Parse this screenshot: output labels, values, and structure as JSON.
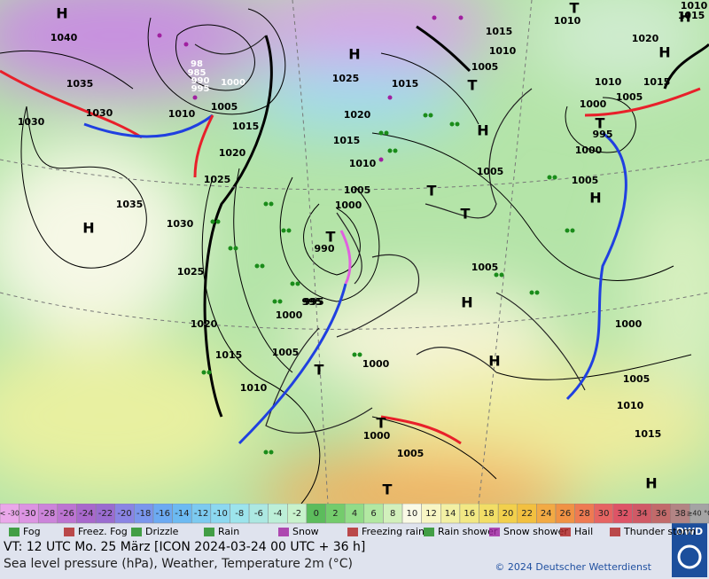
{
  "map": {
    "pressure_labels": [
      "1040",
      "1035",
      "1030",
      "1030",
      "1010",
      "1005",
      "1015",
      "1020",
      "1025",
      "1035",
      "1030",
      "1025",
      "1020",
      "1015",
      "1010",
      "1005",
      "1000",
      "995",
      "990",
      "1000",
      "1005",
      "1010",
      "1015",
      "1020",
      "1025",
      "1015",
      "1010",
      "1005",
      "1015",
      "1010",
      "1005",
      "1000",
      "995",
      "1000",
      "1005",
      "1010",
      "1020",
      "1015",
      "1005",
      "995",
      "1000",
      "1005",
      "1000",
      "1005",
      "1010",
      "1015",
      "1000",
      "1005",
      "1015",
      "1010",
      "1000",
      "1005",
      "98",
      "985",
      "990",
      "995",
      "1000"
    ],
    "centers": [
      "H",
      "H",
      "H",
      "H",
      "H",
      "H",
      "H",
      "H",
      "H",
      "H",
      "T",
      "T",
      "T",
      "T",
      "T",
      "T",
      "T",
      "T",
      "T"
    ]
  },
  "scale": {
    "cells": [
      {
        "label": "< -30",
        "color": "#eaa8ea"
      },
      {
        "label": "-30",
        "color": "#dc94e2"
      },
      {
        "label": "-28",
        "color": "#cc84da"
      },
      {
        "label": "-26",
        "color": "#bc74d2"
      },
      {
        "label": "-24",
        "color": "#a868cc"
      },
      {
        "label": "-22",
        "color": "#9a6cd0"
      },
      {
        "label": "-20",
        "color": "#8a84e4"
      },
      {
        "label": "-18",
        "color": "#7a96ec"
      },
      {
        "label": "-16",
        "color": "#6caaf2"
      },
      {
        "label": "-14",
        "color": "#6cbaf2"
      },
      {
        "label": "-12",
        "color": "#7ccaf0"
      },
      {
        "label": "-10",
        "color": "#8cd8f0"
      },
      {
        "label": "-8",
        "color": "#9ce4ec"
      },
      {
        "label": "-6",
        "color": "#ace8e2"
      },
      {
        "label": "-4",
        "color": "#bcefd8"
      },
      {
        "label": "-2",
        "color": "#c8f2cc"
      },
      {
        "label": "0",
        "color": "#5cbc5c"
      },
      {
        "label": "2",
        "color": "#74cc6c"
      },
      {
        "label": "4",
        "color": "#92dc88"
      },
      {
        "label": "6",
        "color": "#b2e8a2"
      },
      {
        "label": "8",
        "color": "#d2f0bc"
      },
      {
        "label": "10",
        "color": "#fafae6"
      },
      {
        "label": "12",
        "color": "#f8f6c4"
      },
      {
        "label": "14",
        "color": "#f2f0a4"
      },
      {
        "label": "16",
        "color": "#f2e884"
      },
      {
        "label": "18",
        "color": "#f2de66"
      },
      {
        "label": "20",
        "color": "#f2d04c"
      },
      {
        "label": "22",
        "color": "#f2c040"
      },
      {
        "label": "24",
        "color": "#f2aa44"
      },
      {
        "label": "26",
        "color": "#f09244"
      },
      {
        "label": "28",
        "color": "#ee7a52"
      },
      {
        "label": "30",
        "color": "#e66462"
      },
      {
        "label": "32",
        "color": "#de5466"
      },
      {
        "label": "34",
        "color": "#d05a66"
      },
      {
        "label": "36",
        "color": "#c26a6a"
      },
      {
        "label": "38",
        "color": "#b28484"
      },
      {
        "label": "≥40 °C",
        "color": "#a4a4a4"
      }
    ]
  },
  "legend": [
    "Fog",
    "Freez. Fog",
    "Drizzle",
    "Rain",
    "Snow",
    "Freezing rain",
    "Rain shower",
    "Snow shower",
    "Hail",
    "Thunder storm"
  ],
  "logo": "DWD",
  "footer": {
    "valid_time": "VT: 12 UTC Mo.  25 März [ICON 2024-03-24  00 UTC + 36 h]",
    "description": "Sea level pressure (hPa), Weather, Temperature 2m (°C)",
    "copyright": "© 2024 Deutscher Wetterdienst"
  }
}
